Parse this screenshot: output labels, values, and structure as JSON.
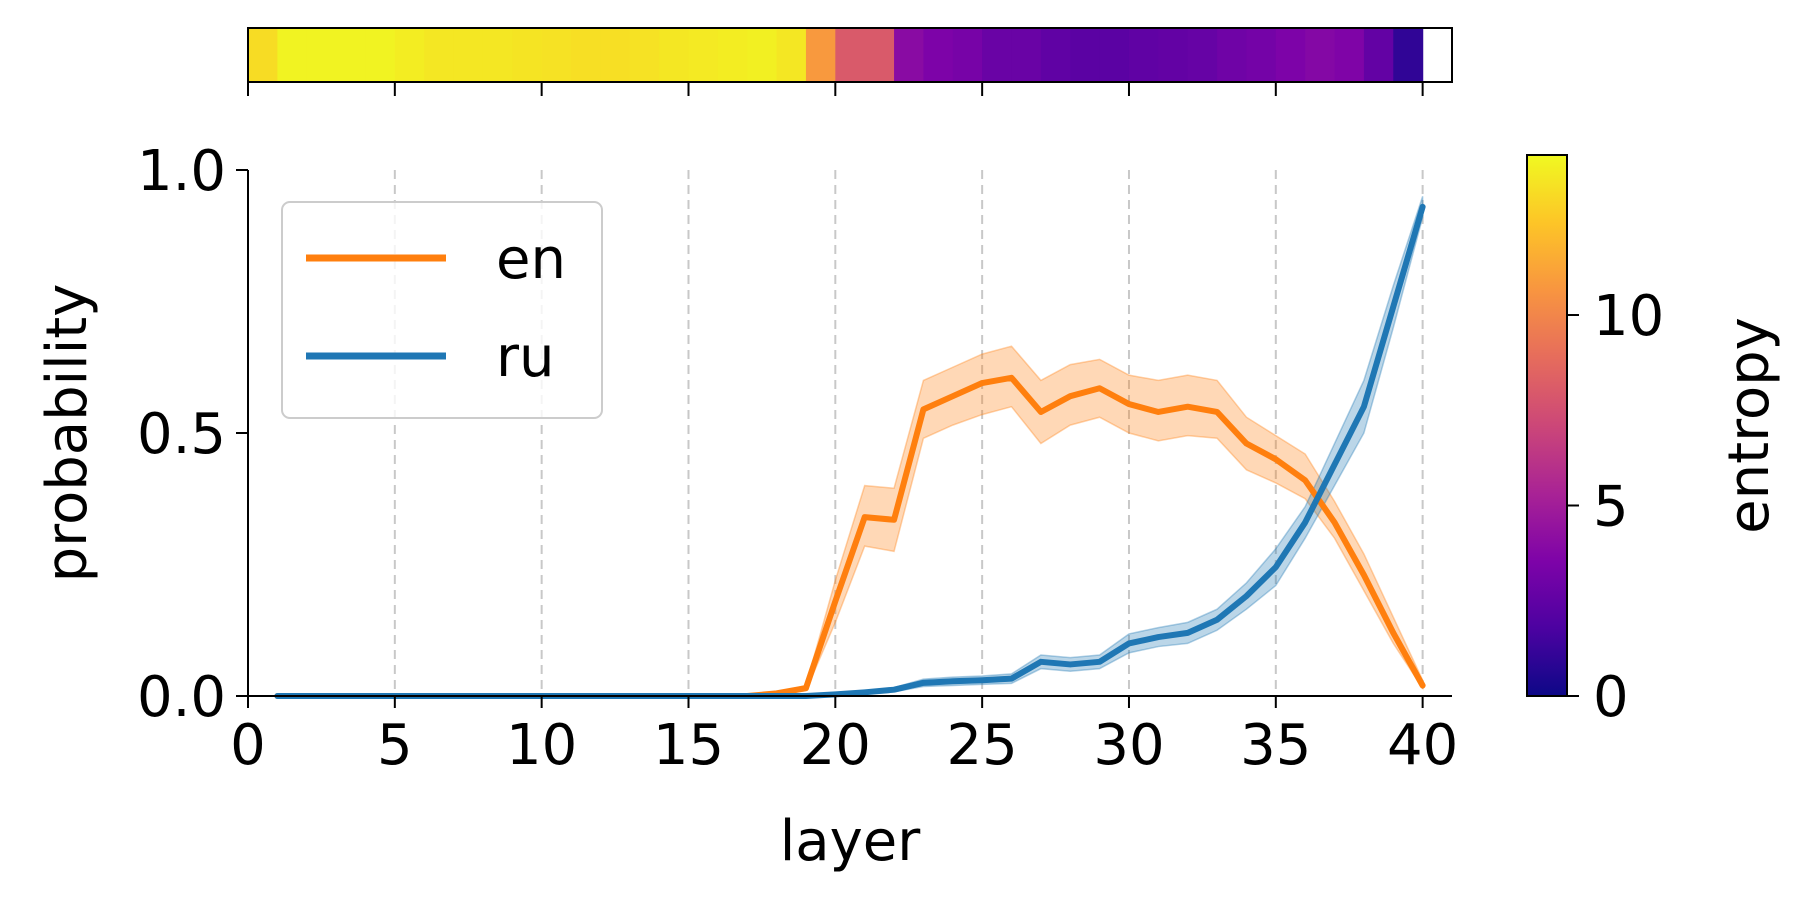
{
  "chart_data": {
    "type": "line",
    "xlabel": "layer",
    "ylabel": "probability",
    "xlim": [
      0,
      41
    ],
    "ylim": [
      0,
      1
    ],
    "x_ticks": [
      0,
      5,
      10,
      15,
      20,
      25,
      30,
      35,
      40
    ],
    "y_ticks": [
      0.0,
      0.5,
      1.0
    ],
    "y_tick_labels": [
      "0.0",
      "0.5",
      "1.0"
    ],
    "grid": "vertical dashed lines at x ticks",
    "legend_position": "upper-left",
    "x": [
      1,
      2,
      3,
      4,
      5,
      6,
      7,
      8,
      9,
      10,
      11,
      12,
      13,
      14,
      15,
      16,
      17,
      18,
      19,
      20,
      21,
      22,
      23,
      24,
      25,
      26,
      27,
      28,
      29,
      30,
      31,
      32,
      33,
      34,
      35,
      36,
      37,
      38,
      39,
      40
    ],
    "series": [
      {
        "name": "en",
        "color": "#ff7f0e",
        "values": [
          0,
          0,
          0,
          0,
          0,
          0,
          0,
          0,
          0,
          0,
          0,
          0,
          0,
          0,
          0,
          0,
          0,
          0.005,
          0.015,
          0.18,
          0.34,
          0.335,
          0.545,
          0.57,
          0.595,
          0.605,
          0.54,
          0.57,
          0.585,
          0.555,
          0.54,
          0.55,
          0.54,
          0.48,
          0.45,
          0.41,
          0.33,
          0.23,
          0.12,
          0.02
        ],
        "band_lower": [
          0,
          0,
          0,
          0,
          0,
          0,
          0,
          0,
          0,
          0,
          0,
          0,
          0,
          0,
          0,
          0,
          0,
          0.003,
          0.01,
          0.14,
          0.285,
          0.275,
          0.49,
          0.515,
          0.535,
          0.55,
          0.48,
          0.515,
          0.53,
          0.5,
          0.485,
          0.495,
          0.49,
          0.43,
          0.405,
          0.375,
          0.3,
          0.2,
          0.1,
          0.015
        ],
        "band_upper": [
          0,
          0,
          0,
          0,
          0,
          0,
          0,
          0,
          0,
          0,
          0,
          0,
          0,
          0,
          0,
          0,
          0,
          0.007,
          0.02,
          0.22,
          0.4,
          0.395,
          0.6,
          0.625,
          0.65,
          0.665,
          0.6,
          0.63,
          0.64,
          0.61,
          0.6,
          0.61,
          0.6,
          0.53,
          0.495,
          0.46,
          0.37,
          0.27,
          0.15,
          0.03
        ]
      },
      {
        "name": "ru",
        "color": "#1f77b4",
        "values": [
          0,
          0,
          0,
          0,
          0,
          0,
          0,
          0,
          0,
          0,
          0,
          0,
          0,
          0,
          0,
          0,
          0,
          0,
          0,
          0.003,
          0.007,
          0.012,
          0.025,
          0.028,
          0.03,
          0.033,
          0.065,
          0.06,
          0.065,
          0.1,
          0.112,
          0.12,
          0.145,
          0.19,
          0.245,
          0.33,
          0.44,
          0.55,
          0.74,
          0.93
        ],
        "band_lower": [
          0,
          0,
          0,
          0,
          0,
          0,
          0,
          0,
          0,
          0,
          0,
          0,
          0,
          0,
          0,
          0,
          0,
          0,
          0,
          0.001,
          0.004,
          0.008,
          0.018,
          0.02,
          0.022,
          0.024,
          0.052,
          0.047,
          0.052,
          0.082,
          0.094,
          0.1,
          0.125,
          0.165,
          0.21,
          0.3,
          0.4,
          0.5,
          0.7,
          0.91
        ],
        "band_upper": [
          0,
          0,
          0,
          0,
          0,
          0,
          0,
          0,
          0,
          0,
          0,
          0,
          0,
          0,
          0,
          0,
          0,
          0,
          0,
          0.005,
          0.01,
          0.016,
          0.032,
          0.036,
          0.038,
          0.042,
          0.078,
          0.073,
          0.078,
          0.118,
          0.13,
          0.14,
          0.165,
          0.215,
          0.28,
          0.36,
          0.48,
          0.6,
          0.78,
          0.95
        ]
      }
    ],
    "entropy_strip": {
      "colormap": "plasma",
      "vmin": 0,
      "vmax": 14.2,
      "values": [
        13.2,
        14.0,
        14.0,
        14.0,
        14.0,
        13.8,
        13.6,
        13.6,
        13.6,
        13.5,
        13.4,
        13.3,
        13.3,
        13.4,
        13.6,
        13.7,
        13.8,
        13.9,
        13.6,
        10.8,
        8.0,
        8.0,
        4.0,
        3.5,
        3.3,
        2.8,
        2.8,
        2.5,
        2.3,
        2.3,
        2.5,
        2.6,
        2.7,
        3.0,
        3.2,
        3.5,
        3.8,
        3.6,
        2.6,
        1.0
      ]
    },
    "colorbar": {
      "label": "entropy",
      "ticks": [
        0,
        5,
        10
      ],
      "range": [
        0,
        14.2
      ]
    }
  }
}
